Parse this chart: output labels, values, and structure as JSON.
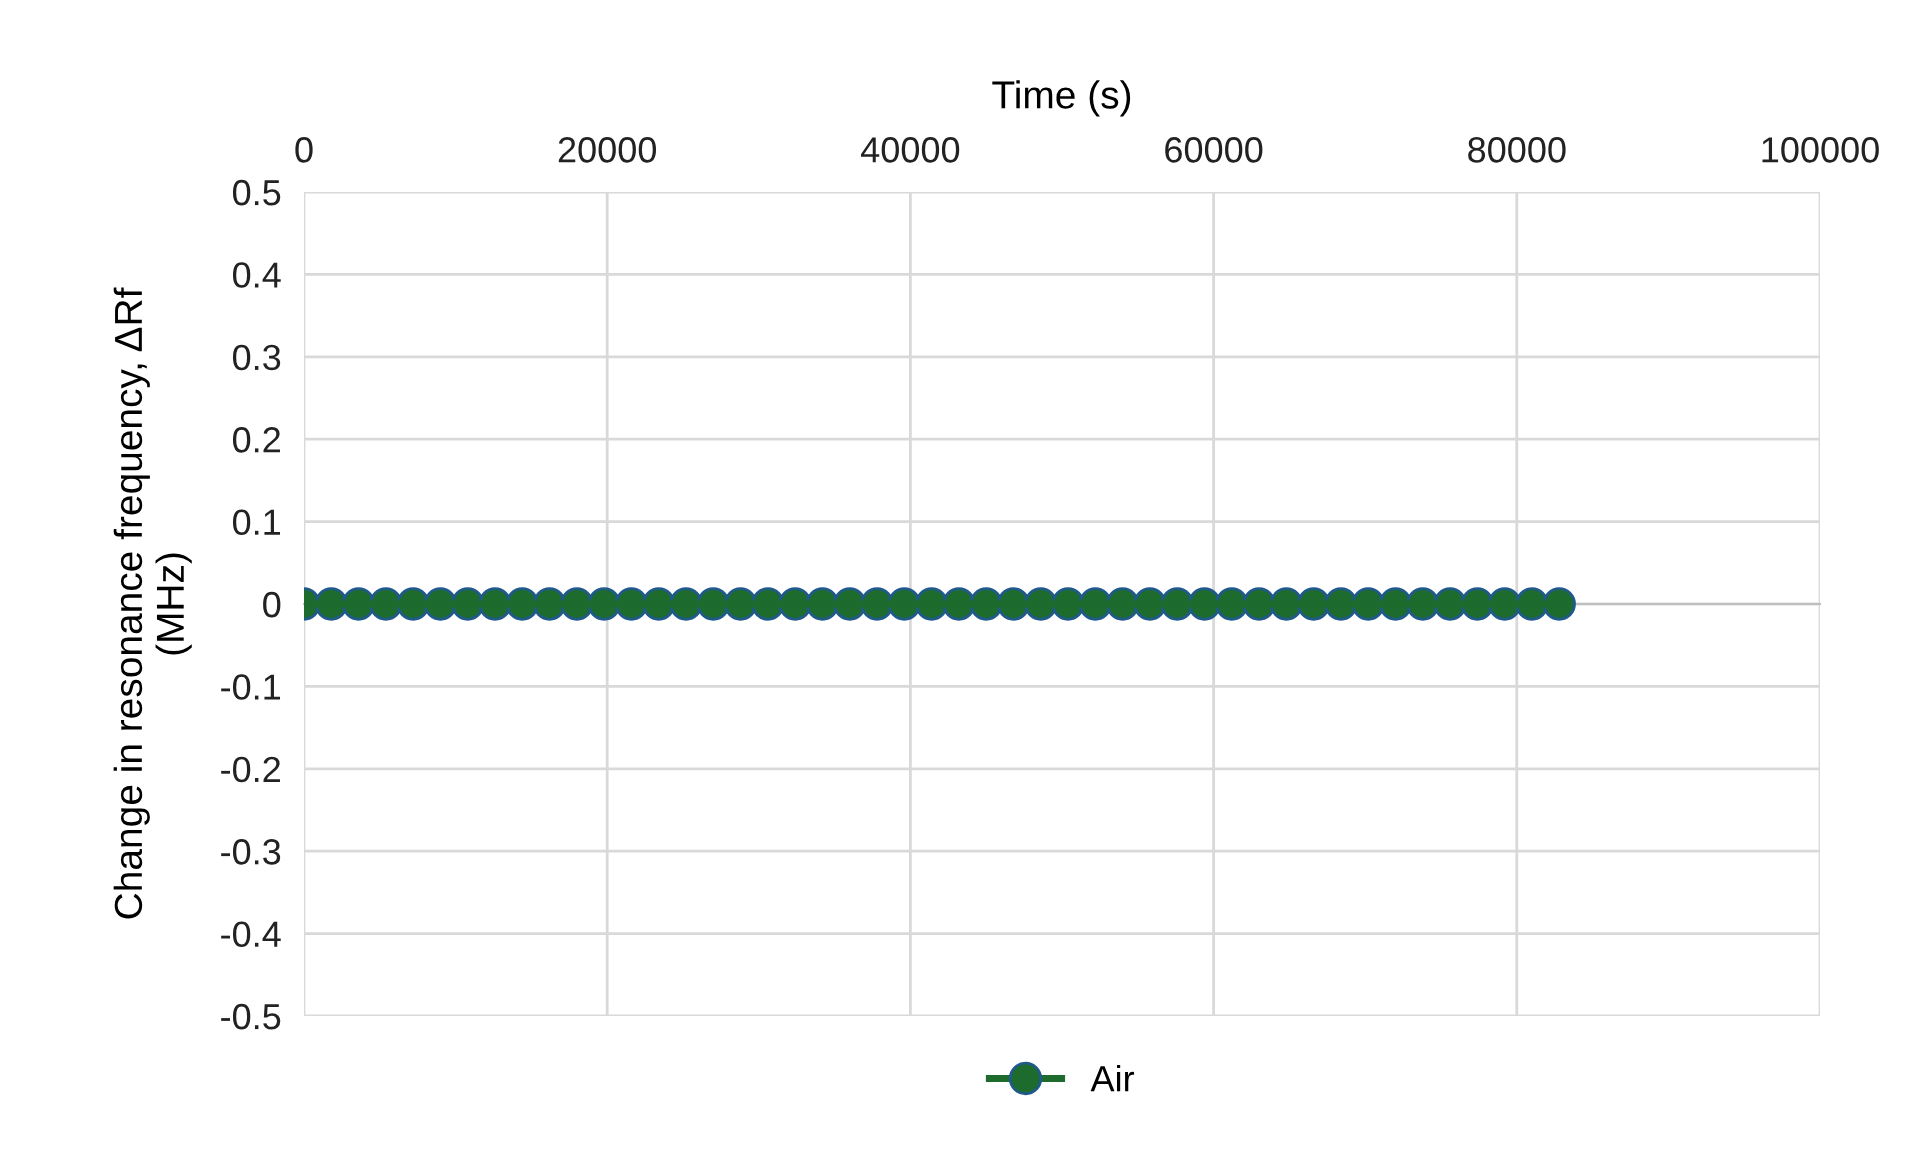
{
  "chart_data": {
    "type": "line",
    "xlabel": "Time (s)",
    "ylabel": "Change in resonance frequency, ΔRf\n(MHz)",
    "x": [
      0,
      1800,
      3600,
      5400,
      7200,
      9000,
      10800,
      12600,
      14400,
      16200,
      18000,
      19800,
      21600,
      23400,
      25200,
      27000,
      28800,
      30600,
      32400,
      34200,
      36000,
      37800,
      39600,
      41400,
      43200,
      45000,
      46800,
      48600,
      50400,
      52200,
      54000,
      55800,
      57600,
      59400,
      61200,
      63000,
      64800,
      66600,
      68400,
      70200,
      72000,
      73800,
      75600,
      77400,
      79200,
      81000,
      82800
    ],
    "series": [
      {
        "name": "Air",
        "color": "#1e6b2e",
        "values": [
          0,
          0,
          0,
          0,
          0,
          0,
          0,
          0,
          0,
          0,
          0,
          0,
          0,
          0,
          0,
          0,
          0,
          0,
          0,
          0,
          0,
          0,
          0,
          0,
          0,
          0,
          0,
          0,
          0,
          0,
          0,
          0,
          0,
          0,
          0,
          0,
          0,
          0,
          0,
          0,
          0,
          0,
          0,
          0,
          0,
          0,
          0
        ]
      }
    ],
    "xlim": [
      0,
      100000
    ],
    "xticks": [
      0,
      20000,
      40000,
      60000,
      80000,
      100000
    ],
    "ylim": [
      -0.5,
      0.5
    ],
    "yticks": [
      -0.5,
      -0.4,
      -0.3,
      -0.2,
      -0.1,
      0,
      0.1,
      0.2,
      0.3,
      0.4,
      0.5
    ],
    "grid": true,
    "legend": "bottom",
    "marker": "circle",
    "line_style": "solid"
  }
}
